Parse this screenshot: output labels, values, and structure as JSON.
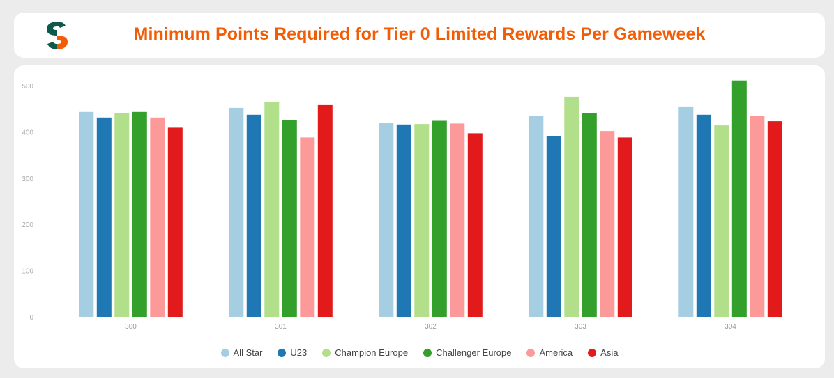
{
  "header": {
    "title": "Minimum Points Required for Tier 0 Limited Rewards Per Gameweek",
    "logo_icon": "brand-s-logo"
  },
  "colors": {
    "title": "#f25c05",
    "logo_dark": "#0e5a4a",
    "logo_accent": "#f25c05"
  },
  "chart_data": {
    "type": "bar",
    "title": "Minimum Points Required for Tier 0 Limited Rewards Per Gameweek",
    "xlabel": "",
    "ylabel": "",
    "categories": [
      "300",
      "301",
      "302",
      "303",
      "304"
    ],
    "ylim": [
      0,
      500
    ],
    "yticks": [
      0,
      100,
      200,
      300,
      400,
      500
    ],
    "grid": false,
    "legend_position": "bottom",
    "series": [
      {
        "name": "All Star",
        "color": "#a6cee3",
        "values": [
          443,
          452,
          420,
          434,
          455
        ]
      },
      {
        "name": "U23",
        "color": "#1f78b4",
        "values": [
          431,
          437,
          416,
          391,
          437
        ]
      },
      {
        "name": "Champion Europe",
        "color": "#b2df8a",
        "values": [
          440,
          464,
          417,
          476,
          414
        ]
      },
      {
        "name": "Challenger Europe",
        "color": "#33a02c",
        "values": [
          443,
          426,
          424,
          440,
          511
        ]
      },
      {
        "name": "America",
        "color": "#fb9a99",
        "values": [
          431,
          388,
          418,
          402,
          435
        ]
      },
      {
        "name": "Asia",
        "color": "#e31a1c",
        "values": [
          409,
          458,
          397,
          388,
          423
        ]
      }
    ]
  }
}
